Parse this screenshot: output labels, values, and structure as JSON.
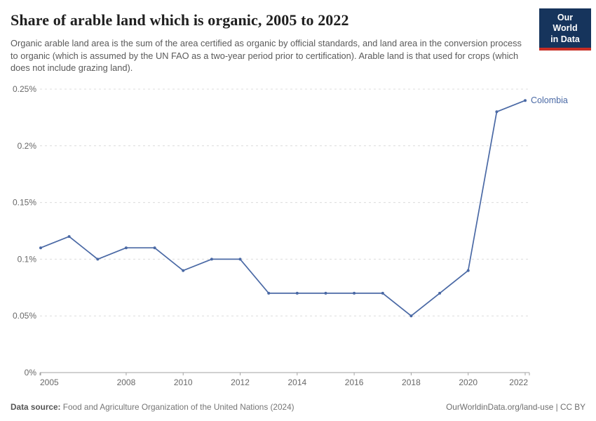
{
  "header": {
    "title": "Share of arable land which is organic, 2005 to 2022",
    "subtitle": "Organic arable land area is the sum of the area certified as organic by official standards, and land area in the conversion process to organic (which is assumed by the UN FAO as a two-year period prior to certification). Arable land is that used for crops (which does not include grazing land).",
    "logo": {
      "line1": "Our World",
      "line2": "in Data",
      "bg_color": "#16345c",
      "stripe_color": "#c72d24"
    }
  },
  "chart_data": {
    "type": "line",
    "title": "Share of arable land which is organic, 2005 to 2022",
    "xlabel": "",
    "ylabel": "",
    "unit": "%",
    "xlim": [
      2005,
      2022
    ],
    "ylim": [
      0,
      0.25
    ],
    "grid": true,
    "legend_position": "end-of-line",
    "x": [
      2005,
      2006,
      2007,
      2008,
      2009,
      2010,
      2011,
      2012,
      2013,
      2014,
      2015,
      2016,
      2017,
      2018,
      2019,
      2020,
      2021,
      2022
    ],
    "series": [
      {
        "name": "Colombia",
        "color": "#4a69a5",
        "values": [
          0.11,
          0.12,
          0.1,
          0.11,
          0.11,
          0.09,
          0.1,
          0.1,
          0.07,
          0.07,
          0.07,
          0.07,
          0.07,
          0.05,
          0.07,
          0.09,
          0.23,
          0.24
        ]
      }
    ],
    "x_ticks": [
      2005,
      2008,
      2010,
      2012,
      2014,
      2016,
      2018,
      2020,
      2022
    ],
    "y_ticks": [
      {
        "value": 0,
        "label": "0%"
      },
      {
        "value": 0.05,
        "label": "0.05%"
      },
      {
        "value": 0.1,
        "label": "0.1%"
      },
      {
        "value": 0.15,
        "label": "0.15%"
      },
      {
        "value": 0.2,
        "label": "0.2%"
      },
      {
        "value": 0.25,
        "label": "0.25%"
      }
    ]
  },
  "footer": {
    "datasource_label": "Data source:",
    "datasource_text": " Food and Agriculture Organization of the United Nations (2024)",
    "link_text": "OurWorldinData.org/land-use | CC BY"
  },
  "colors": {
    "line": "#4a69a5",
    "grid": "#dcdcdc",
    "axis": "#a3a3a3",
    "tick_label": "#686868",
    "end_label": "#4a69a5"
  }
}
